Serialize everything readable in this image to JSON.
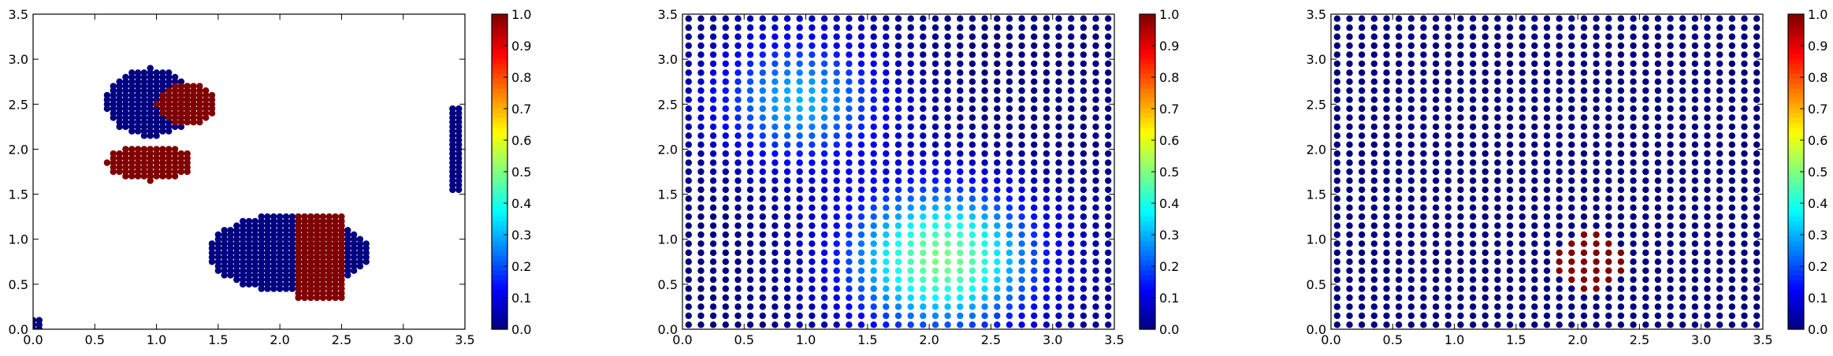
{
  "chart_data": [
    {
      "type": "scatter",
      "xlim": [
        0,
        3.5
      ],
      "ylim": [
        0,
        3.5
      ],
      "xticks": [
        "0.0",
        "0.5",
        "1.0",
        "1.5",
        "2.0",
        "2.5",
        "3.0",
        "3.5"
      ],
      "yticks": [
        "0.0",
        "0.5",
        "1.0",
        "1.5",
        "2.0",
        "2.5",
        "3.0",
        "3.5"
      ],
      "colorbar": {
        "range": [
          0,
          1
        ],
        "ticks": [
          "0.0",
          "0.1",
          "0.2",
          "0.3",
          "0.4",
          "0.5",
          "0.6",
          "0.7",
          "0.8",
          "0.9",
          "1.0"
        ],
        "colormap": "jet"
      },
      "grid": false,
      "clusters": [
        {
          "shape": "ellipse",
          "cx": 0.95,
          "cy": 2.52,
          "rx": 0.36,
          "ry": 0.38,
          "value": 0.0
        },
        {
          "shape": "ellipse",
          "cx": 1.25,
          "cy": 2.5,
          "rx": 0.25,
          "ry": 0.22,
          "value": 1.0
        },
        {
          "shape": "ellipse",
          "cx": 0.95,
          "cy": 1.85,
          "rx": 0.35,
          "ry": 0.2,
          "value": 1.0
        },
        {
          "shape": "ellipse",
          "cx": 2.07,
          "cy": 0.85,
          "rx": 0.65,
          "ry": 0.43,
          "value": 0.0
        },
        {
          "shape": "rect",
          "x0": 2.15,
          "x1": 2.5,
          "y0": 0.35,
          "y1": 1.28,
          "value": 1.0
        },
        {
          "shape": "rect",
          "x0": 3.4,
          "x1": 3.45,
          "y0": 1.55,
          "y1": 2.45,
          "value": 0.0
        },
        {
          "shape": "rect",
          "x0": 0.0,
          "x1": 0.05,
          "y0": 0.0,
          "y1": 0.1,
          "value": 0.0
        }
      ]
    },
    {
      "type": "scatter",
      "xlim": [
        0,
        3.5
      ],
      "ylim": [
        0,
        3.5
      ],
      "xticks": [
        "0.0",
        "0.5",
        "1.0",
        "1.5",
        "2.0",
        "2.5",
        "3.0",
        "3.5"
      ],
      "yticks": [
        "0.0",
        "0.5",
        "1.0",
        "1.5",
        "2.0",
        "2.5",
        "3.0",
        "3.5"
      ],
      "colorbar": {
        "range": [
          0,
          1
        ],
        "ticks": [
          "0.0",
          "0.1",
          "0.2",
          "0.3",
          "0.4",
          "0.5",
          "0.6",
          "0.7",
          "0.8",
          "0.9",
          "1.0"
        ],
        "colormap": "jet"
      },
      "grid": false,
      "grid_points": {
        "x_start": 0.05,
        "x_end": 3.45,
        "y_start": 0.05,
        "y_end": 3.45,
        "step": 0.1
      },
      "field": [
        {
          "cx": 2.1,
          "cy": 0.78,
          "sigma": 0.55,
          "amplitude": 0.5
        },
        {
          "cx": 0.95,
          "cy": 2.55,
          "sigma": 0.5,
          "amplitude": 0.3
        }
      ]
    },
    {
      "type": "scatter",
      "xlim": [
        0,
        3.5
      ],
      "ylim": [
        0,
        3.5
      ],
      "xticks": [
        "0.0",
        "0.5",
        "1.0",
        "1.5",
        "2.0",
        "2.5",
        "3.0",
        "3.5"
      ],
      "yticks": [
        "0.0",
        "0.5",
        "1.0",
        "1.5",
        "2.0",
        "2.5",
        "3.0",
        "3.5"
      ],
      "colorbar": {
        "range": [
          0,
          1
        ],
        "ticks": [
          "0.0",
          "0.1",
          "0.2",
          "0.3",
          "0.4",
          "0.5",
          "0.6",
          "0.7",
          "0.8",
          "0.9",
          "1.0"
        ],
        "colormap": "jet"
      },
      "grid": false,
      "grid_points": {
        "x_start": 0.05,
        "x_end": 3.45,
        "y_start": 0.05,
        "y_end": 3.45,
        "step": 0.1
      },
      "background_value": 0.0,
      "highlight": {
        "cx": 2.1,
        "cy": 0.75,
        "r": 0.32,
        "value": 1.0
      }
    }
  ]
}
